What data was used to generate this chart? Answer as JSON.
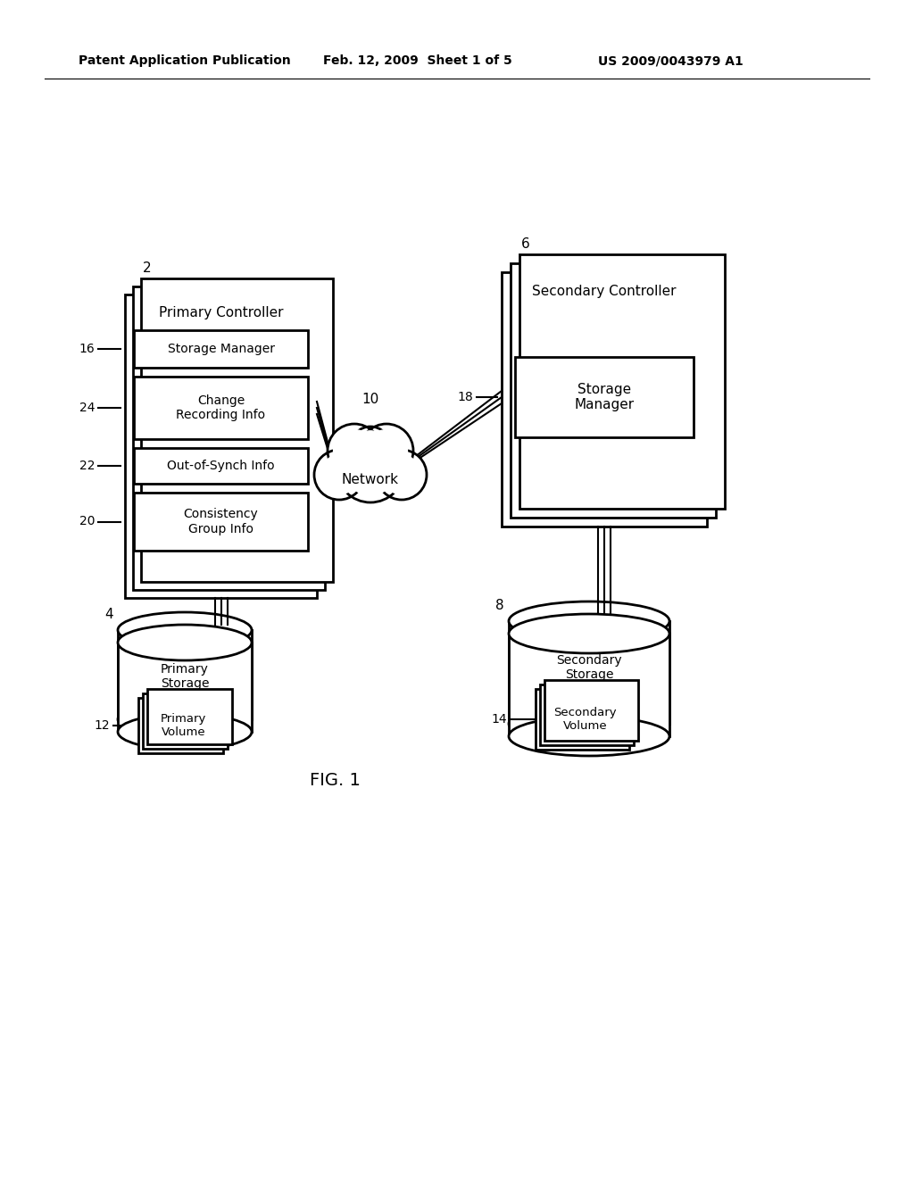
{
  "bg_color": "#ffffff",
  "header_left": "Patent Application Publication",
  "header_mid": "Feb. 12, 2009  Sheet 1 of 5",
  "header_right": "US 2009/0043979 A1",
  "fig_label": "FIG. 1",
  "primary_controller_label": "Primary Controller",
  "primary_controller_num": "2",
  "storage_manager_left_label": "Storage Manager",
  "storage_manager_left_num": "16",
  "change_recording_label": "Change\nRecording Info",
  "change_recording_num": "24",
  "out_of_synch_label": "Out-of-Synch Info",
  "out_of_synch_num": "22",
  "consistency_group_label": "Consistency\nGroup Info",
  "consistency_group_num": "20",
  "primary_storage_label": "Primary\nStorage",
  "primary_storage_num": "4",
  "primary_volume_label": "Primary\nVolume",
  "primary_volume_num": "12",
  "network_label": "Network",
  "network_num": "10",
  "secondary_controller_label": "Secondary Controller",
  "secondary_controller_num": "6",
  "storage_manager_right_label": "Storage\nManager",
  "storage_manager_right_num": "18",
  "secondary_storage_label": "Secondary\nStorage",
  "secondary_storage_num": "8",
  "secondary_volume_label": "Secondary\nVolume",
  "secondary_volume_num": "14"
}
